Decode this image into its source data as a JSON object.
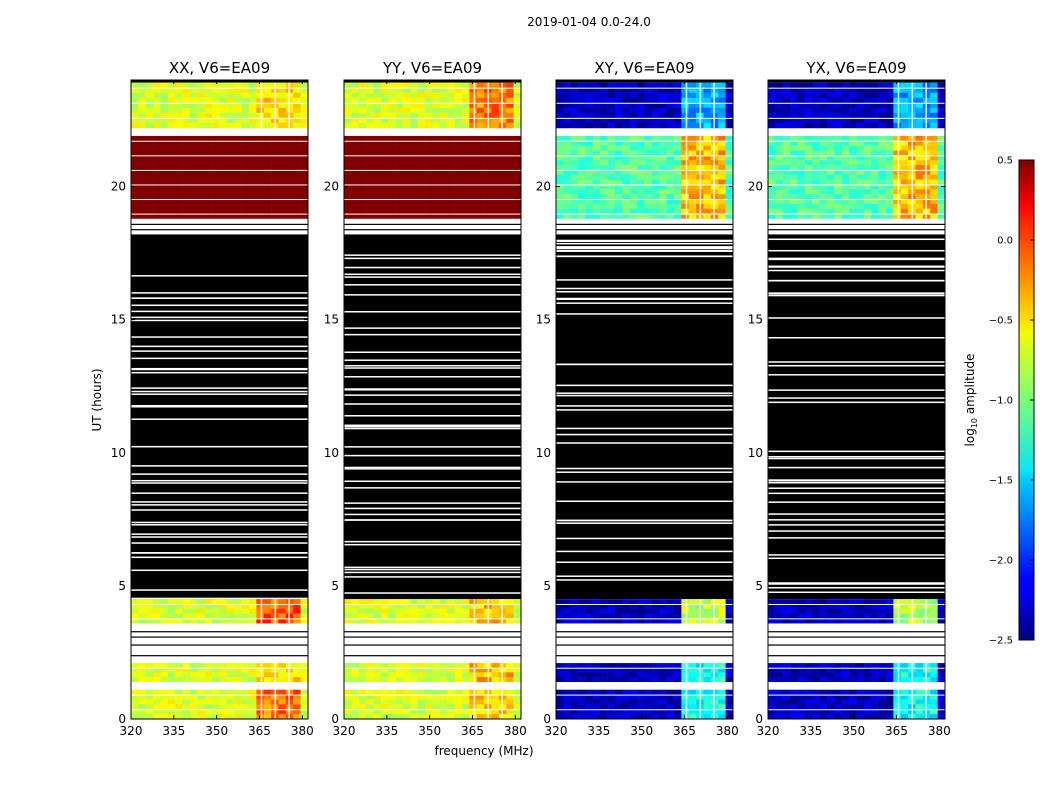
{
  "chart_data": {
    "type": "heatmap",
    "title": "2019-01-04 0.0-24.0",
    "xlabel": "frequency (MHz)",
    "ylabel": "UT (hours)",
    "xlim": [
      320,
      382
    ],
    "ylim": [
      0,
      24
    ],
    "xticks": [
      320,
      335,
      350,
      365,
      380
    ],
    "yticks": [
      0,
      5,
      10,
      15,
      20
    ],
    "colorbar": {
      "label": "log10 amplitude",
      "label_base": "log",
      "label_sub": "10",
      "label_rest": " amplitude",
      "range": [
        -2.5,
        0.5
      ],
      "ticks": [
        "0.5",
        "0.0",
        "−0.5",
        "−1.0",
        "−1.5",
        "−2.0",
        "−2.5"
      ],
      "colormap": "jet"
    },
    "panels": [
      {
        "title": "XX, V6=EA09",
        "segments": [
          {
            "t0": 0.0,
            "t1": 1.1,
            "low": -0.9,
            "high": 0.0
          },
          {
            "t0": 1.4,
            "t1": 2.1,
            "low": -0.9,
            "high": -0.3
          },
          {
            "t0": 3.6,
            "t1": 4.5,
            "low": -0.9,
            "high": 0.1
          },
          {
            "t0": 18.8,
            "t1": 21.9,
            "low": 0.5,
            "high": 0.5
          },
          {
            "t0": 22.2,
            "t1": 23.9,
            "low": -0.9,
            "high": -0.3
          }
        ]
      },
      {
        "title": "YY, V6=EA09",
        "segments": [
          {
            "t0": 0.0,
            "t1": 1.1,
            "low": -0.9,
            "high": -0.3
          },
          {
            "t0": 1.4,
            "t1": 2.1,
            "low": -0.9,
            "high": -0.2
          },
          {
            "t0": 3.6,
            "t1": 4.5,
            "low": -0.9,
            "high": -0.2
          },
          {
            "t0": 18.8,
            "t1": 21.9,
            "low": 0.5,
            "high": 0.5
          },
          {
            "t0": 22.2,
            "t1": 23.9,
            "low": -0.9,
            "high": 0.0
          }
        ]
      },
      {
        "title": "XY, V6=EA09",
        "segments": [
          {
            "t0": 0.0,
            "t1": 1.1,
            "low": -2.5,
            "high": -1.1
          },
          {
            "t0": 1.4,
            "t1": 2.1,
            "low": -2.5,
            "high": -1.1
          },
          {
            "t0": 3.6,
            "t1": 4.5,
            "low": -2.5,
            "high": -0.6
          },
          {
            "t0": 18.8,
            "t1": 21.9,
            "low": -1.3,
            "high": -0.2
          },
          {
            "t0": 22.2,
            "t1": 23.9,
            "low": -2.5,
            "high": -1.4
          }
        ]
      },
      {
        "title": "YX, V6=EA09",
        "segments": [
          {
            "t0": 0.0,
            "t1": 1.1,
            "low": -2.5,
            "high": -1.1
          },
          {
            "t0": 1.4,
            "t1": 2.1,
            "low": -2.5,
            "high": -1.1
          },
          {
            "t0": 3.6,
            "t1": 4.5,
            "low": -2.5,
            "high": -0.6
          },
          {
            "t0": 18.8,
            "t1": 21.9,
            "low": -1.3,
            "high": -0.2
          },
          {
            "t0": 22.2,
            "t1": 23.9,
            "low": -2.5,
            "high": -1.4
          }
        ]
      }
    ],
    "flagged_color": "#000000",
    "flagged_ranges": [
      [
        4.5,
        18.2
      ],
      [
        23.9,
        24.0
      ]
    ],
    "empty_ranges": [
      [
        2.1,
        3.6
      ],
      [
        18.2,
        18.8
      ],
      [
        21.9,
        22.2
      ]
    ],
    "rfi_band_mhz": [
      363,
      379
    ]
  }
}
